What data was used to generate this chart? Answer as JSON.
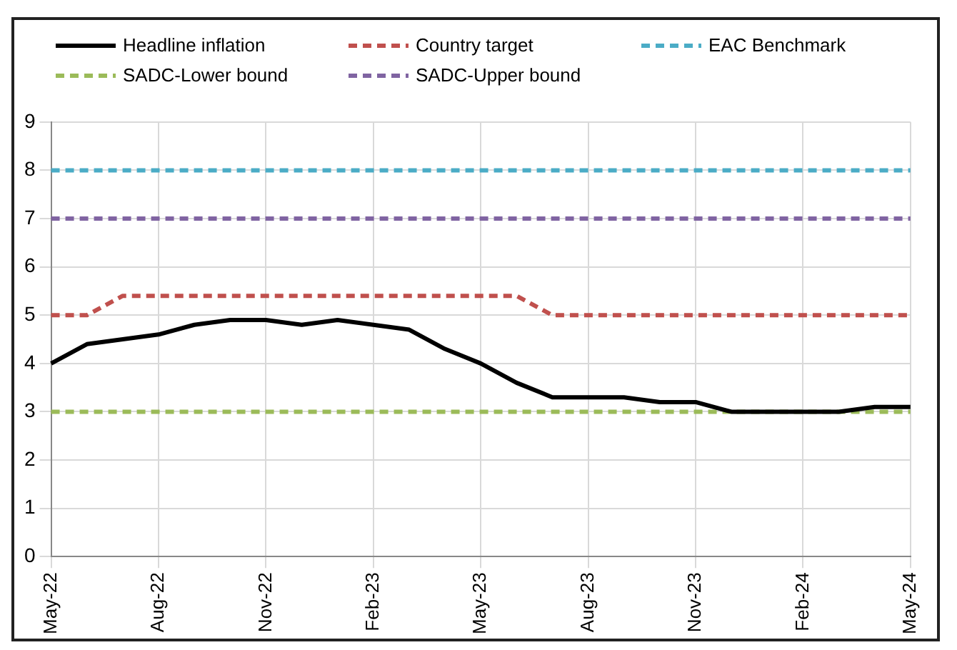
{
  "chart_data": {
    "type": "line",
    "categories": [
      "May-22",
      null,
      null,
      "Aug-22",
      null,
      null,
      "Nov-22",
      null,
      null,
      "Feb-23",
      null,
      null,
      "May-23",
      null,
      null,
      "Aug-23",
      null,
      null,
      "Nov-23",
      null,
      null,
      "Feb-24",
      null,
      null,
      "May-24"
    ],
    "series": [
      {
        "name": "Headline inflation",
        "color": "#000000",
        "line_style": "solid",
        "values": [
          4.0,
          4.4,
          4.5,
          4.6,
          4.8,
          4.9,
          4.9,
          4.8,
          4.9,
          4.8,
          4.7,
          4.3,
          4.0,
          3.6,
          3.3,
          3.3,
          3.3,
          3.2,
          3.2,
          3.0,
          3.0,
          3.0,
          3.0,
          3.1,
          3.1
        ]
      },
      {
        "name": "Country target",
        "color": "#c0504d",
        "line_style": "dashed",
        "values": [
          5.0,
          5.0,
          5.4,
          5.4,
          5.4,
          5.4,
          5.4,
          5.4,
          5.4,
          5.4,
          5.4,
          5.4,
          5.4,
          5.4,
          5.0,
          5.0,
          5.0,
          5.0,
          5.0,
          5.0,
          5.0,
          5.0,
          5.0,
          5.0,
          5.0
        ]
      },
      {
        "name": "EAC Benchmark",
        "color": "#4bacc6",
        "line_style": "dashed",
        "values": [
          8,
          8,
          8,
          8,
          8,
          8,
          8,
          8,
          8,
          8,
          8,
          8,
          8,
          8,
          8,
          8,
          8,
          8,
          8,
          8,
          8,
          8,
          8,
          8,
          8
        ]
      },
      {
        "name": "SADC-Lower bound",
        "color": "#9bbb59",
        "line_style": "dashed",
        "values": [
          3,
          3,
          3,
          3,
          3,
          3,
          3,
          3,
          3,
          3,
          3,
          3,
          3,
          3,
          3,
          3,
          3,
          3,
          3,
          3,
          3,
          3,
          3,
          3,
          3
        ]
      },
      {
        "name": "SADC-Upper bound",
        "color": "#8064a2",
        "line_style": "dashed",
        "values": [
          7,
          7,
          7,
          7,
          7,
          7,
          7,
          7,
          7,
          7,
          7,
          7,
          7,
          7,
          7,
          7,
          7,
          7,
          7,
          7,
          7,
          7,
          7,
          7,
          7
        ]
      }
    ],
    "ylim": [
      0,
      9
    ],
    "yticks": [
      0,
      1,
      2,
      3,
      4,
      5,
      6,
      7,
      8,
      9
    ],
    "grid": true,
    "legend": "top",
    "marker": "none"
  }
}
